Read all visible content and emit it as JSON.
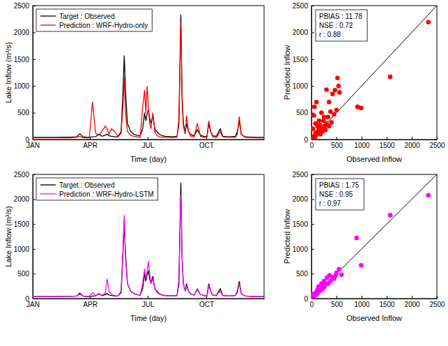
{
  "chart_data": [
    {
      "type": "line",
      "x": [
        1,
        10,
        20,
        30,
        40,
        50,
        60,
        70,
        75,
        80,
        85,
        90,
        95,
        100,
        105,
        110,
        115,
        118,
        121,
        125,
        130,
        135,
        140,
        143,
        145,
        147,
        150,
        155,
        160,
        165,
        170,
        174,
        177,
        179,
        181,
        183,
        185,
        187,
        190,
        193,
        196,
        200,
        205,
        210,
        220,
        228,
        231,
        234,
        236,
        238,
        241,
        243,
        246,
        250,
        255,
        260,
        265,
        270,
        275,
        278,
        281,
        284,
        290,
        296,
        300,
        310,
        320,
        323,
        326,
        329,
        335,
        345,
        355,
        365
      ],
      "xlim": [
        1,
        365
      ],
      "xticks": [
        {
          "value": 1,
          "label": "JAN"
        },
        {
          "value": 91,
          "label": "APR"
        },
        {
          "value": 182,
          "label": "JUL"
        },
        {
          "value": 274,
          "label": "OCT"
        }
      ],
      "ylim": [
        0,
        2500
      ],
      "yticks": [
        0,
        500,
        1000,
        1500,
        2000,
        2500
      ],
      "x_label": "Time (day)",
      "y_label": "Lake Inflow (m³/s)",
      "legend": "upper left",
      "series": [
        {
          "name": "Target : Observed",
          "color": "#000000",
          "values": [
            40,
            40,
            40,
            40,
            40,
            45,
            45,
            50,
            110,
            50,
            45,
            40,
            50,
            55,
            100,
            60,
            80,
            100,
            70,
            60,
            50,
            50,
            120,
            900,
            1570,
            900,
            300,
            150,
            100,
            80,
            70,
            200,
            500,
            350,
            480,
            550,
            400,
            300,
            450,
            200,
            150,
            100,
            70,
            60,
            55,
            60,
            300,
            2330,
            800,
            300,
            150,
            300,
            150,
            90,
            70,
            180,
            80,
            60,
            50,
            300,
            150,
            70,
            60,
            200,
            60,
            50,
            60,
            150,
            350,
            100,
            50,
            45,
            40,
            40
          ]
        },
        {
          "name": "Prediction : WRF-Hydro-only",
          "color": "#ff0000",
          "values": [
            30,
            30,
            30,
            30,
            30,
            30,
            30,
            40,
            60,
            35,
            30,
            30,
            700,
            120,
            80,
            150,
            250,
            200,
            100,
            200,
            150,
            60,
            150,
            600,
            1170,
            500,
            150,
            80,
            60,
            50,
            40,
            600,
            920,
            500,
            1000,
            600,
            300,
            200,
            500,
            150,
            80,
            50,
            40,
            40,
            35,
            40,
            400,
            2190,
            700,
            250,
            100,
            450,
            150,
            60,
            50,
            300,
            60,
            40,
            40,
            350,
            150,
            50,
            40,
            150,
            50,
            40,
            40,
            100,
            430,
            100,
            40,
            35,
            30,
            30
          ]
        }
      ]
    },
    {
      "type": "line",
      "x": [
        1,
        10,
        20,
        30,
        40,
        50,
        60,
        70,
        75,
        80,
        85,
        90,
        95,
        100,
        105,
        110,
        115,
        118,
        121,
        125,
        130,
        135,
        140,
        143,
        145,
        147,
        150,
        155,
        160,
        165,
        170,
        174,
        177,
        179,
        181,
        183,
        185,
        187,
        190,
        193,
        196,
        200,
        205,
        210,
        220,
        228,
        231,
        234,
        236,
        238,
        241,
        243,
        246,
        250,
        255,
        260,
        265,
        270,
        275,
        278,
        281,
        284,
        290,
        296,
        300,
        310,
        320,
        323,
        326,
        329,
        335,
        345,
        355,
        365
      ],
      "xlim": [
        1,
        365
      ],
      "xticks": [
        {
          "value": 1,
          "label": "JAN"
        },
        {
          "value": 91,
          "label": "APR"
        },
        {
          "value": 182,
          "label": "JUL"
        },
        {
          "value": 274,
          "label": "OCT"
        }
      ],
      "ylim": [
        0,
        2500
      ],
      "yticks": [
        0,
        500,
        1000,
        1500,
        2000,
        2500
      ],
      "x_label": "Time (day)",
      "y_label": "Lake Inflow (m³/s)",
      "legend": "upper left",
      "series": [
        {
          "name": "Target : Observed",
          "color": "#000000",
          "values": [
            40,
            40,
            40,
            40,
            40,
            45,
            45,
            50,
            110,
            50,
            45,
            40,
            50,
            55,
            100,
            60,
            80,
            100,
            70,
            60,
            50,
            50,
            120,
            900,
            1570,
            900,
            300,
            150,
            100,
            80,
            70,
            200,
            500,
            350,
            480,
            550,
            400,
            300,
            450,
            200,
            150,
            100,
            70,
            60,
            55,
            60,
            300,
            2330,
            800,
            300,
            150,
            300,
            150,
            90,
            70,
            180,
            80,
            60,
            50,
            300,
            150,
            70,
            60,
            200,
            60,
            50,
            60,
            150,
            350,
            100,
            50,
            45,
            40,
            40
          ]
        },
        {
          "name": "Prediction : WRF-Hydro-LSTM",
          "color": "#ff00ff",
          "values": [
            40,
            40,
            40,
            40,
            40,
            45,
            45,
            50,
            90,
            50,
            45,
            40,
            120,
            60,
            90,
            70,
            100,
            400,
            150,
            80,
            60,
            50,
            150,
            1000,
            1680,
            800,
            300,
            150,
            100,
            80,
            70,
            300,
            600,
            400,
            550,
            750,
            500,
            300,
            400,
            200,
            130,
            90,
            70,
            60,
            55,
            60,
            400,
            2080,
            800,
            300,
            150,
            250,
            150,
            90,
            70,
            200,
            80,
            60,
            50,
            250,
            150,
            70,
            60,
            150,
            60,
            50,
            60,
            120,
            300,
            100,
            50,
            45,
            40,
            40
          ]
        }
      ]
    },
    {
      "type": "scatter",
      "x": [
        2330,
        1570,
        990,
        920,
        520,
        540,
        470,
        420,
        560,
        300,
        350,
        380,
        450,
        100,
        60,
        50,
        200,
        250,
        150,
        300,
        260,
        200,
        150,
        120,
        100,
        80,
        60,
        50,
        40,
        30,
        45,
        70,
        90,
        180,
        220,
        280,
        350,
        400,
        120,
        80,
        30,
        170,
        240,
        330,
        500
      ],
      "values": [
        2190,
        1170,
        590,
        610,
        1150,
        1000,
        920,
        850,
        880,
        930,
        700,
        520,
        470,
        700,
        610,
        450,
        500,
        420,
        350,
        300,
        250,
        200,
        180,
        150,
        100,
        120,
        60,
        50,
        30,
        30,
        35,
        40,
        80,
        100,
        150,
        180,
        250,
        320,
        250,
        300,
        200,
        270,
        350,
        420,
        550
      ],
      "color": "#ff0000",
      "marker": "circle",
      "xlim": [
        0,
        2500
      ],
      "xticks": [
        0,
        500,
        1000,
        1500,
        2000,
        2500
      ],
      "ylim": [
        0,
        2500
      ],
      "yticks": [
        0,
        500,
        1000,
        1500,
        2000,
        2500
      ],
      "x_label": "Observed Inflow",
      "y_label": "Predicted Inflow",
      "annotations": [
        "PBIAS : 11.78",
        "NSE : 0.72",
        "r : 0.88"
      ]
    },
    {
      "type": "scatter",
      "x": [
        2330,
        1570,
        900,
        990,
        550,
        480,
        420,
        360,
        310,
        290,
        250,
        230,
        200,
        180,
        150,
        120,
        100,
        80,
        60,
        50,
        40,
        30,
        45,
        70,
        90,
        130,
        160,
        210,
        260,
        330,
        380,
        450,
        600,
        500,
        140,
        110,
        40,
        60
      ],
      "values": [
        2080,
        1680,
        1220,
        670,
        590,
        460,
        430,
        470,
        420,
        300,
        350,
        260,
        300,
        220,
        200,
        170,
        120,
        100,
        70,
        50,
        40,
        35,
        50,
        60,
        80,
        110,
        150,
        180,
        230,
        300,
        350,
        400,
        480,
        520,
        240,
        160,
        80,
        100
      ],
      "color": "#ff00ff",
      "marker": "circle",
      "xlim": [
        0,
        2500
      ],
      "xticks": [
        0,
        500,
        1000,
        1500,
        2000,
        2500
      ],
      "ylim": [
        0,
        2500
      ],
      "yticks": [
        0,
        500,
        1000,
        1500,
        2000,
        2500
      ],
      "x_label": "Observed Inflow",
      "y_label": "Predicted Inflow",
      "annotations": [
        "PBIAS : 1.75",
        "NSE : 0.95",
        "r : 0.97"
      ]
    }
  ]
}
